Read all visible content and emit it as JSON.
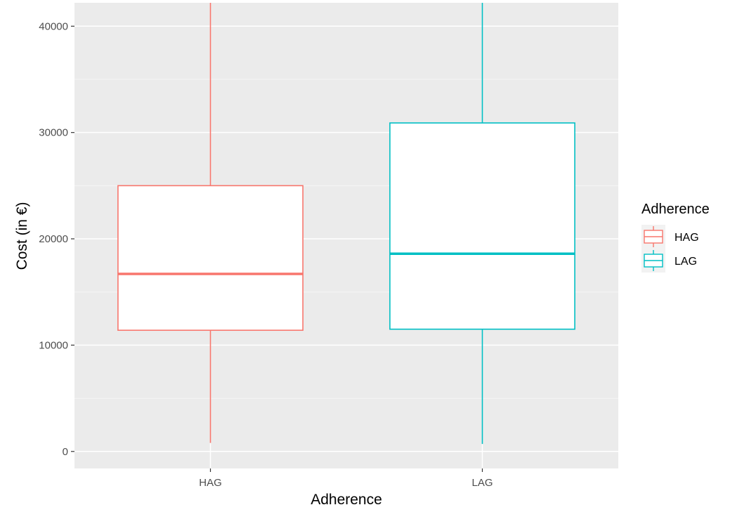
{
  "chart_data": {
    "type": "boxplot",
    "xlabel": "Adherence",
    "ylabel": "Cost (in €)",
    "categories": [
      "HAG",
      "LAG"
    ],
    "ylim": [
      -1600,
      42200
    ],
    "yticks": [
      0,
      10000,
      20000,
      30000,
      40000
    ],
    "ytick_labels": [
      "0",
      "10000",
      "20000",
      "30000",
      "40000"
    ],
    "grid": true,
    "boxes": [
      {
        "category": "HAG",
        "whisker_low": 800,
        "q1": 11400,
        "median": 16700,
        "q3": 25000,
        "whisker_high": 42200,
        "color": "#F8766D"
      },
      {
        "category": "LAG",
        "whisker_low": 700,
        "q1": 11500,
        "median": 18600,
        "q3": 30900,
        "whisker_high": 42200,
        "color": "#00BFC4"
      }
    ],
    "legend": {
      "title": "Adherence",
      "position": "right",
      "items": [
        {
          "label": "HAG",
          "color": "#F8766D"
        },
        {
          "label": "LAG",
          "color": "#00BFC4"
        }
      ]
    },
    "colors": {
      "panel": "#EBEBEB",
      "grid_major": "#FFFFFF",
      "box_fill": "#FFFFFF"
    }
  }
}
